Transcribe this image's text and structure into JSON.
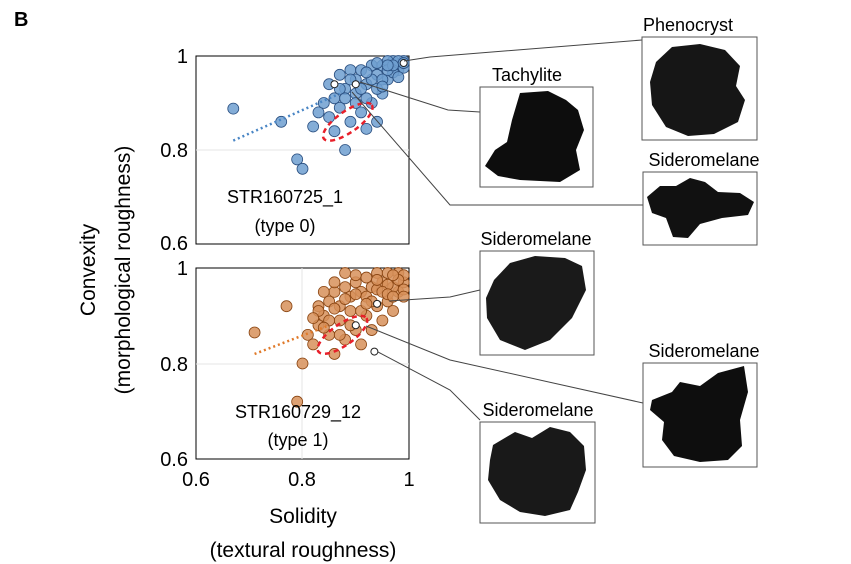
{
  "panel_label": "B",
  "colors": {
    "blue_fill": "#6f9fd0",
    "blue_edge": "#2a4f80",
    "orange_fill": "#d7905a",
    "orange_edge": "#8a4512",
    "ellipse": "#e8202a",
    "grain": "#111111",
    "axis": "#000000"
  },
  "chart_data": [
    {
      "type": "scatter",
      "panel": "top",
      "title": "",
      "xlabel": "",
      "ylabel": "Convexity",
      "ylabel2": "(morphological roughness)",
      "xlim": [
        0.6,
        1.0
      ],
      "ylim": [
        0.6,
        1.0
      ],
      "yticks": [
        "1",
        "0.8",
        "0.6"
      ],
      "xticks": [],
      "grid": false,
      "sample_label": "STR160725_1",
      "type_label": "(type 0)",
      "series": [
        {
          "color": "#6f9fd0",
          "points": [
            [
              0.67,
              0.888
            ],
            [
              0.76,
              0.86
            ],
            [
              0.79,
              0.78
            ],
            [
              0.8,
              0.76
            ],
            [
              0.82,
              0.85
            ],
            [
              0.83,
              0.88
            ],
            [
              0.84,
              0.9
            ],
            [
              0.85,
              0.87
            ],
            [
              0.86,
              0.84
            ],
            [
              0.87,
              0.89
            ],
            [
              0.88,
              0.8
            ],
            [
              0.89,
              0.86
            ],
            [
              0.9,
              0.92
            ],
            [
              0.91,
              0.88
            ],
            [
              0.92,
              0.845
            ],
            [
              0.93,
              0.9
            ],
            [
              0.94,
              0.86
            ],
            [
              0.95,
              0.92
            ],
            [
              0.85,
              0.94
            ],
            [
              0.87,
              0.96
            ],
            [
              0.88,
              0.93
            ],
            [
              0.89,
              0.97
            ],
            [
              0.9,
              0.95
            ],
            [
              0.91,
              0.97
            ],
            [
              0.92,
              0.94
            ],
            [
              0.93,
              0.98
            ],
            [
              0.94,
              0.96
            ],
            [
              0.95,
              0.98
            ],
            [
              0.96,
              0.95
            ],
            [
              0.97,
              0.99
            ],
            [
              0.98,
              0.97
            ],
            [
              0.99,
              0.995
            ],
            [
              0.96,
              0.99
            ],
            [
              0.97,
              0.965
            ],
            [
              0.98,
              0.99
            ],
            [
              0.99,
              0.975
            ],
            [
              0.86,
              0.91
            ],
            [
              0.88,
              0.91
            ],
            [
              0.9,
              0.9
            ],
            [
              0.92,
              0.91
            ],
            [
              0.94,
              0.93
            ],
            [
              0.96,
              0.97
            ],
            [
              0.93,
              0.95
            ],
            [
              0.95,
              0.95
            ],
            [
              0.97,
              0.98
            ],
            [
              0.91,
              0.93
            ],
            [
              0.89,
              0.95
            ],
            [
              0.87,
              0.93
            ],
            [
              0.95,
              0.935
            ],
            [
              0.98,
              0.955
            ],
            [
              0.99,
              0.985
            ],
            [
              0.96,
              0.98
            ],
            [
              0.94,
              0.985
            ],
            [
              0.92,
              0.965
            ]
          ]
        }
      ],
      "highlighted_points": [
        [
          0.86,
          0.94
        ],
        [
          0.9,
          0.94
        ],
        [
          0.99,
          0.985
        ]
      ],
      "trend_line": [
        [
          0.67,
          0.82
        ],
        [
          0.87,
          0.92
        ]
      ],
      "ellipse": {
        "cx": 0.885,
        "cy": 0.86,
        "rx": 0.11,
        "ry": 0.045,
        "angle_deg": -35
      }
    },
    {
      "type": "scatter",
      "panel": "bottom",
      "title": "",
      "xlabel": "Solidity",
      "xlabel2": "(textural roughness)",
      "ylabel": "",
      "xlim": [
        0.6,
        1.0
      ],
      "ylim": [
        0.6,
        1.0
      ],
      "yticks": [
        "1",
        "0.8",
        "0.6"
      ],
      "xticks": [
        "0.6",
        "0.8",
        "1"
      ],
      "grid": false,
      "sample_label": "STR160729_12",
      "type_label": "(type 1)",
      "series": [
        {
          "color": "#d7905a",
          "points": [
            [
              0.71,
              0.865
            ],
            [
              0.77,
              0.92
            ],
            [
              0.79,
              0.72
            ],
            [
              0.8,
              0.8
            ],
            [
              0.81,
              0.86
            ],
            [
              0.82,
              0.84
            ],
            [
              0.83,
              0.88
            ],
            [
              0.84,
              0.9
            ],
            [
              0.85,
              0.86
            ],
            [
              0.86,
              0.82
            ],
            [
              0.87,
              0.89
            ],
            [
              0.88,
              0.85
            ],
            [
              0.89,
              0.91
            ],
            [
              0.9,
              0.87
            ],
            [
              0.91,
              0.84
            ],
            [
              0.92,
              0.9
            ],
            [
              0.93,
              0.87
            ],
            [
              0.94,
              0.92
            ],
            [
              0.95,
              0.89
            ],
            [
              0.96,
              0.93
            ],
            [
              0.97,
              0.91
            ],
            [
              0.98,
              0.95
            ],
            [
              0.99,
              0.97
            ],
            [
              0.85,
              0.93
            ],
            [
              0.86,
              0.95
            ],
            [
              0.87,
              0.92
            ],
            [
              0.88,
              0.96
            ],
            [
              0.89,
              0.94
            ],
            [
              0.9,
              0.97
            ],
            [
              0.91,
              0.95
            ],
            [
              0.92,
              0.98
            ],
            [
              0.93,
              0.96
            ],
            [
              0.94,
              0.99
            ],
            [
              0.95,
              0.97
            ],
            [
              0.96,
              0.99
            ],
            [
              0.97,
              0.96
            ],
            [
              0.98,
              0.99
            ],
            [
              0.99,
              0.985
            ],
            [
              0.84,
              0.95
            ],
            [
              0.83,
              0.92
            ],
            [
              0.86,
              0.97
            ],
            [
              0.88,
              0.99
            ],
            [
              0.9,
              0.985
            ],
            [
              0.92,
              0.94
            ],
            [
              0.94,
              0.955
            ],
            [
              0.96,
              0.965
            ],
            [
              0.98,
              0.975
            ],
            [
              0.93,
              0.93
            ],
            [
              0.95,
              0.95
            ],
            [
              0.97,
              0.985
            ],
            [
              0.91,
              0.91
            ],
            [
              0.89,
              0.88
            ],
            [
              0.87,
              0.86
            ],
            [
              0.85,
              0.89
            ],
            [
              0.83,
              0.91
            ],
            [
              0.82,
              0.895
            ],
            [
              0.99,
              0.955
            ],
            [
              0.96,
              0.945
            ],
            [
              0.94,
              0.975
            ],
            [
              0.92,
              0.925
            ],
            [
              0.9,
              0.945
            ],
            [
              0.88,
              0.935
            ],
            [
              0.86,
              0.915
            ],
            [
              0.84,
              0.875
            ],
            [
              0.97,
              0.94
            ],
            [
              0.99,
              0.94
            ]
          ]
        }
      ],
      "highlighted_points": [
        [
          0.94,
          0.925
        ],
        [
          0.9,
          0.88
        ],
        [
          0.935,
          0.825
        ]
      ],
      "trend_line": [
        [
          0.71,
          0.82
        ],
        [
          0.85,
          0.88
        ]
      ],
      "ellipse": {
        "cx": 0.875,
        "cy": 0.86,
        "rx": 0.11,
        "ry": 0.045,
        "angle_deg": -35
      }
    }
  ],
  "grain_labels": {
    "phenocryst": "Phenocryst",
    "tachylite": "Tachylite",
    "sideromelane_top_right": "Sideromelane",
    "sideromelane_middle": "Sideromelane",
    "sideromelane_right": "Sideromelane",
    "sideromelane_bottom": "Sideromelane"
  }
}
